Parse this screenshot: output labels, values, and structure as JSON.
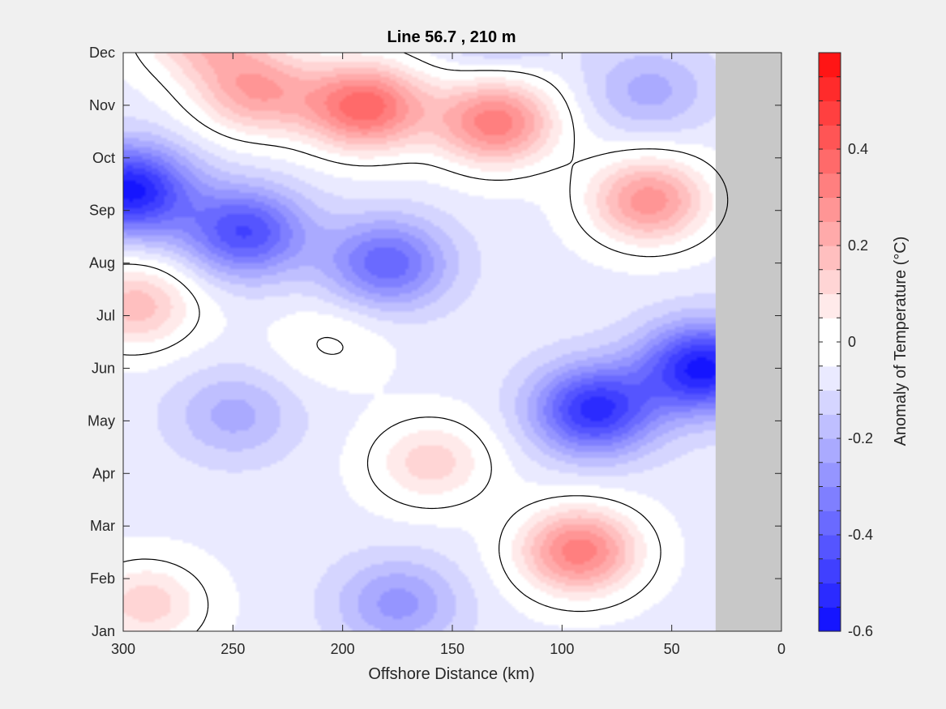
{
  "chart_data": {
    "type": "heatmap",
    "title": "Line 56.7 , 210 m",
    "xlabel": "Offshore Distance (km)",
    "ylabel": "",
    "xlim": [
      300,
      0
    ],
    "x_reversed": true,
    "x_ticks": [
      300,
      250,
      200,
      150,
      100,
      50,
      0
    ],
    "y_tick_labels": [
      "Jan",
      "Feb",
      "Mar",
      "Apr",
      "May",
      "Jun",
      "Jul",
      "Aug",
      "Sep",
      "Oct",
      "Nov",
      "Dec"
    ],
    "no_data_range_km": [
      30,
      0
    ],
    "zero_contour": true,
    "colorbar": {
      "label": "Anomaly of Temperature (°C)",
      "min": -0.6,
      "max": 0.6,
      "step": 0.05,
      "ticks": [
        -0.6,
        -0.4,
        -0.2,
        0,
        0.2,
        0.4
      ],
      "tick_labels": [
        "-0.6",
        "-0.4",
        "-0.2",
        "0",
        "0.2",
        "0.4"
      ],
      "colormap": "blue-white-red",
      "cold_color": "#0000ff",
      "neutral_color": "#ffffff",
      "warm_color": "#ff0000"
    },
    "features": [
      {
        "x_km": 190,
        "month": 10.0,
        "value": 0.45
      },
      {
        "x_km": 130,
        "month": 9.7,
        "value": 0.4
      },
      {
        "x_km": 240,
        "month": 10.3,
        "value": 0.3
      },
      {
        "x_km": 265,
        "month": 11.4,
        "value": 0.25
      },
      {
        "x_km": 60,
        "month": 8.2,
        "value": 0.35
      },
      {
        "x_km": 92,
        "month": 1.5,
        "value": 0.4
      },
      {
        "x_km": 160,
        "month": 3.2,
        "value": 0.2
      },
      {
        "x_km": 290,
        "month": 0.5,
        "value": 0.2
      },
      {
        "x_km": 295,
        "month": 6.2,
        "value": 0.25
      },
      {
        "x_km": 205,
        "month": 5.5,
        "value": 0.08
      },
      {
        "x_km": 298,
        "month": 8.4,
        "value": -0.5
      },
      {
        "x_km": 245,
        "month": 7.6,
        "value": -0.38
      },
      {
        "x_km": 180,
        "month": 7.0,
        "value": -0.32
      },
      {
        "x_km": 85,
        "month": 4.2,
        "value": -0.45
      },
      {
        "x_km": 35,
        "month": 5.0,
        "value": -0.5
      },
      {
        "x_km": 130,
        "month": 11.6,
        "value": -0.15
      },
      {
        "x_km": 60,
        "month": 10.3,
        "value": -0.15
      },
      {
        "x_km": 250,
        "month": 4.1,
        "value": -0.15
      },
      {
        "x_km": 175,
        "month": 0.5,
        "value": -0.2
      }
    ],
    "background_value": -0.07
  }
}
